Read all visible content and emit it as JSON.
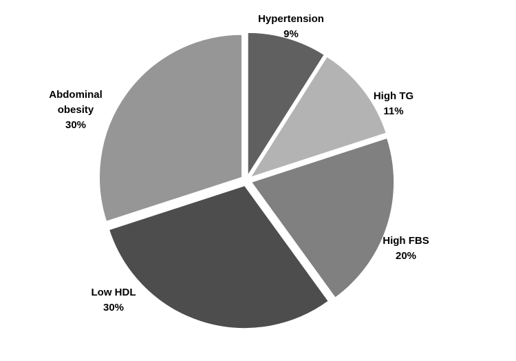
{
  "chart_data": {
    "type": "pie",
    "categories": [
      "Hypertension",
      "High TG",
      "High FBS",
      "Low HDL",
      "Abdominal obesity"
    ],
    "values": [
      9,
      11,
      20,
      30,
      30
    ],
    "value_labels": [
      "9%",
      "11%",
      "20%",
      "30%",
      "30%"
    ],
    "colors": [
      "#606060",
      "#b3b3b3",
      "#808080",
      "#4d4d4d",
      "#969696"
    ]
  }
}
